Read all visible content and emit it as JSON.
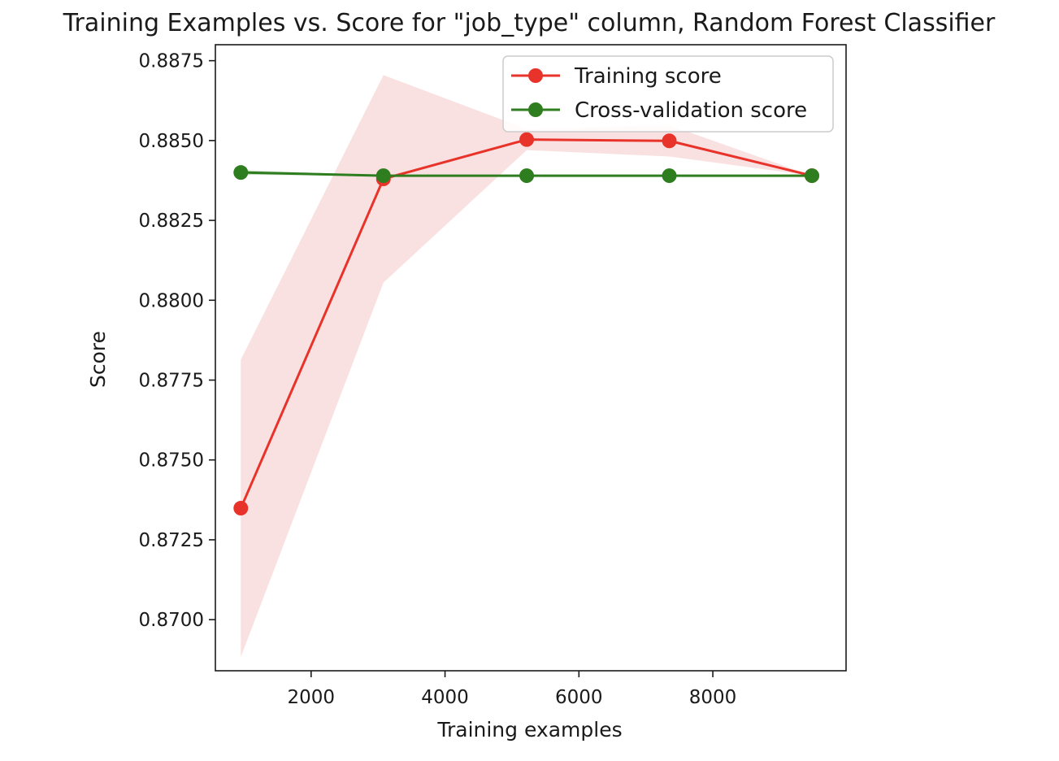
{
  "chart_data": {
    "type": "line",
    "title": "Training Examples vs. Score for \"job_type\" column, Random Forest Classifier",
    "xlabel": "Training examples",
    "ylabel": "Score",
    "xlim": [
      570,
      9990
    ],
    "ylim": [
      0.8684,
      0.888
    ],
    "xticks": [
      2000,
      4000,
      6000,
      8000
    ],
    "xtick_labels": [
      "2000",
      "4000",
      "6000",
      "8000"
    ],
    "yticks": [
      0.87,
      0.8725,
      0.875,
      0.8775,
      0.88,
      0.8825,
      0.885,
      0.8875
    ],
    "ytick_labels": [
      "0.8700",
      "0.8725",
      "0.8750",
      "0.8775",
      "0.8800",
      "0.8825",
      "0.8850",
      "0.8875"
    ],
    "grid": false,
    "legend_position": "upper right",
    "x": [
      950,
      3080,
      5220,
      7350,
      9480
    ],
    "series": [
      {
        "name": "Training score",
        "color": "#e8332a",
        "band_color": "#f6c8c8",
        "values": [
          0.87349,
          0.8838,
          0.88503,
          0.88499,
          0.8839
        ],
        "band_lower": [
          0.86883,
          0.88055,
          0.8847,
          0.8845,
          0.8839
        ],
        "band_upper": [
          0.87814,
          0.88705,
          0.88536,
          0.88548,
          0.8839
        ]
      },
      {
        "name": "Cross-validation score",
        "color": "#2e7d1e",
        "band_color": "#2e7d1e",
        "values": [
          0.884,
          0.8839,
          0.8839,
          0.8839,
          0.8839
        ],
        "band_lower": [
          0.88393,
          0.88389,
          0.88389,
          0.88389,
          0.88389
        ],
        "band_upper": [
          0.88407,
          0.88391,
          0.88391,
          0.88391,
          0.88391
        ]
      }
    ]
  }
}
